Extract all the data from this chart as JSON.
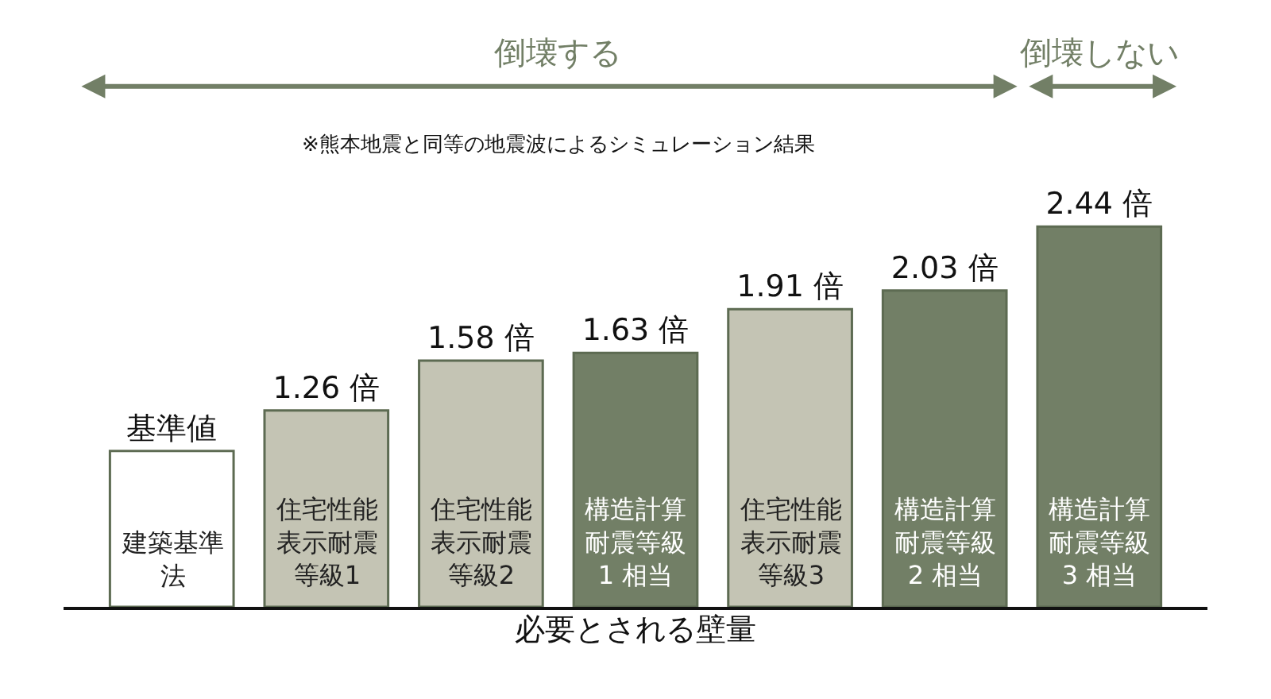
{
  "chart_data": {
    "type": "bar",
    "categories": [
      "建築基準法",
      "住宅性能表示耐震等級1",
      "住宅性能表示耐震等級2",
      "構造計算耐震等級1 相当",
      "住宅性能表示耐震等級3",
      "構造計算耐震等級2 相当",
      "構造計算耐震等級3 相当"
    ],
    "values": [
      1,
      1.26,
      1.58,
      1.63,
      1.91,
      2.03,
      2.44
    ],
    "annotations": [
      "倒壊する",
      "倒壊しない",
      "※熊本地震と同等の地震波によるシミュレーション結果"
    ],
    "colors": [
      "#ffffff",
      "#c4c4b4",
      "#c4c4b4",
      "#727f66",
      "#c4c4b4",
      "#727f66",
      "#727f66"
    ],
    "value_labels": [
      "基準値",
      "1.26 倍",
      "1.58 倍",
      "1.63 倍",
      "1.91 倍",
      "2.03 倍",
      "2.44 倍"
    ],
    "xlabel": "必要とされる壁量"
  }
}
